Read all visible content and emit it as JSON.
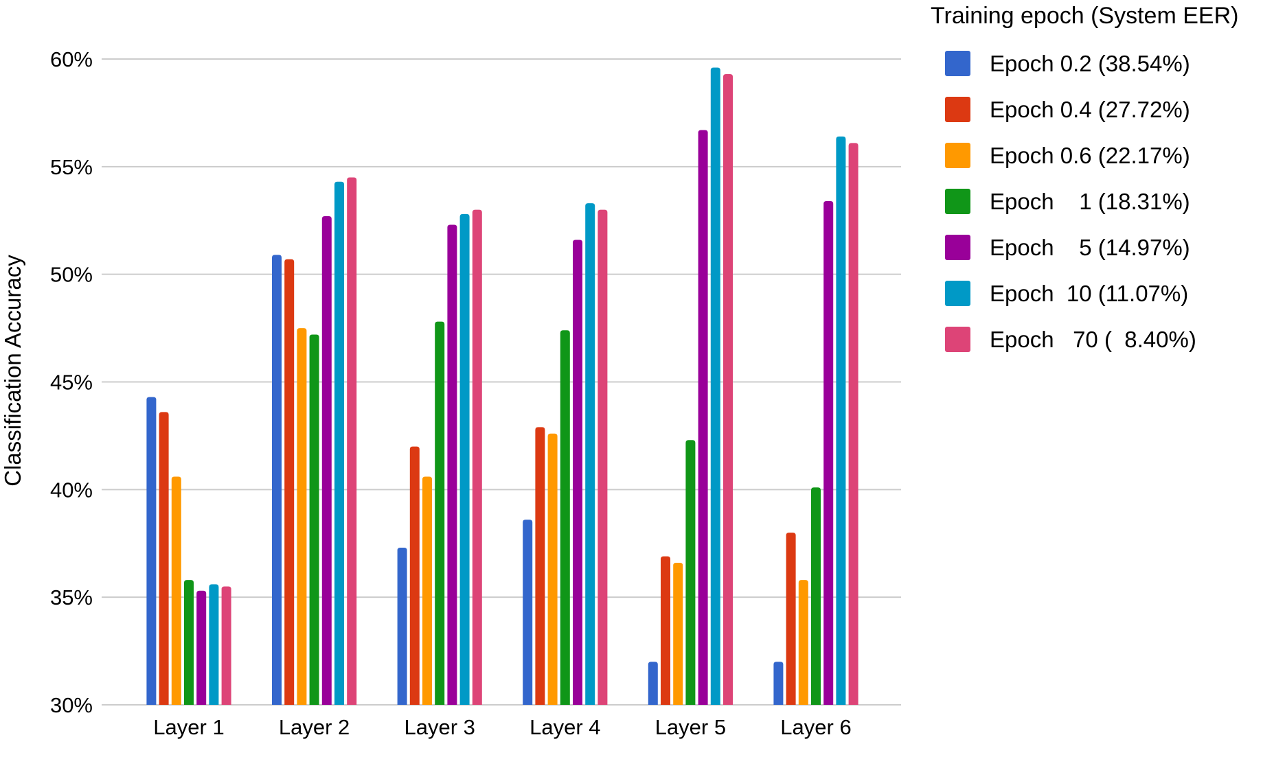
{
  "chart_data": {
    "type": "bar",
    "title": "",
    "xlabel": "",
    "ylabel": "Classification Accuracy",
    "ylim": [
      30,
      60
    ],
    "yticks": [
      30,
      35,
      40,
      45,
      50,
      55,
      60
    ],
    "ytick_labels": [
      "30%",
      "35%",
      "40%",
      "45%",
      "50%",
      "55%",
      "60%"
    ],
    "grid": true,
    "legend_title": "Training epoch (System EER)",
    "legend_position": "right",
    "categories": [
      "Layer 1",
      "Layer 2",
      "Layer 3",
      "Layer 4",
      "Layer 5",
      "Layer 6"
    ],
    "series": [
      {
        "name": "Epoch 0.2 (38.54%)",
        "color": "#3366cc",
        "values": [
          44.3,
          50.9,
          37.3,
          38.6,
          32.0,
          32.0
        ]
      },
      {
        "name": "Epoch 0.4 (27.72%)",
        "color": "#dc3912",
        "values": [
          43.6,
          50.7,
          42.0,
          42.9,
          36.9,
          38.0
        ]
      },
      {
        "name": "Epoch 0.6 (22.17%)",
        "color": "#ff9900",
        "values": [
          40.6,
          47.5,
          40.6,
          42.6,
          36.6,
          35.8
        ]
      },
      {
        "name": "Epoch    1 (18.31%)",
        "color": "#109618",
        "values": [
          35.8,
          47.2,
          47.8,
          47.4,
          42.3,
          40.1
        ]
      },
      {
        "name": "Epoch    5 (14.97%)",
        "color": "#990099",
        "values": [
          35.3,
          52.7,
          52.3,
          51.6,
          56.7,
          53.4
        ]
      },
      {
        "name": "Epoch  10 (11.07%)",
        "color": "#0099c6",
        "values": [
          35.6,
          54.3,
          52.8,
          53.3,
          59.6,
          56.4
        ]
      },
      {
        "name": "Epoch   70 (  8.40%)",
        "color": "#dd4477",
        "values": [
          35.5,
          54.5,
          53.0,
          53.0,
          59.3,
          56.1
        ]
      }
    ]
  }
}
